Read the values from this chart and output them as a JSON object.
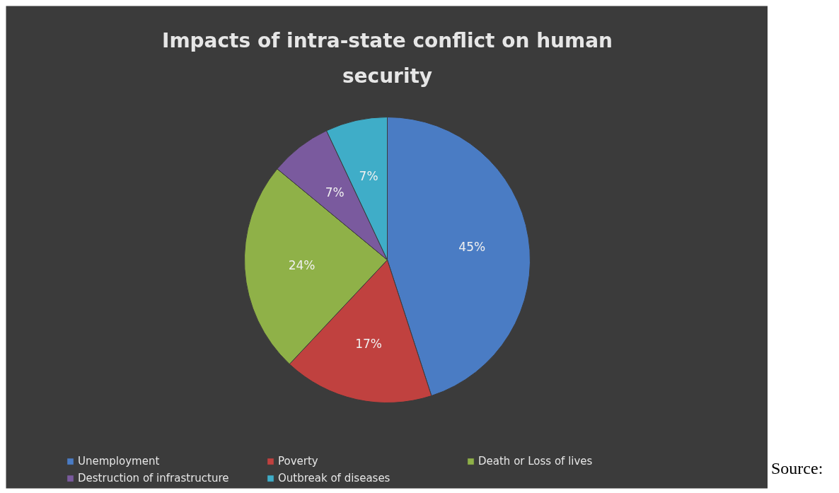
{
  "chart_data": {
    "type": "pie",
    "title": "Impacts of intra-state conflict on human security",
    "categories": [
      "Unemployment",
      "Poverty",
      "Death or Loss of lives",
      "Destruction of infrastructure",
      "Outbreak of diseases"
    ],
    "values": [
      45,
      17,
      24,
      7,
      7
    ],
    "colors": [
      "#4a7cc4",
      "#c0413f",
      "#8fb148",
      "#7a5a9e",
      "#3fadc8"
    ],
    "value_labels": [
      "45%",
      "17%",
      "24%",
      "7%",
      "7%"
    ],
    "legend": "bottom",
    "annotations": [
      "Source:"
    ]
  }
}
